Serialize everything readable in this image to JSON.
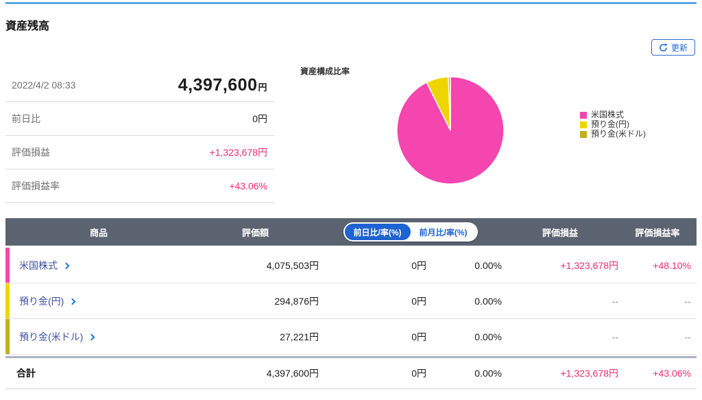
{
  "colors": {
    "top_rule": "#58a6e6",
    "accent_blue": "#2a6bd4",
    "toggle_active_bg": "#1e63cf",
    "link_indigo": "#3f519e",
    "chevron_blue": "#1f78d8",
    "gain_pink": "#ee2e6c",
    "header_bg": "#5b6370",
    "label_gray": "#707070",
    "muted_gray": "#8a8f98",
    "thick_divider": "#a9b3c2"
  },
  "page": {
    "title": "資産残高"
  },
  "toolbar": {
    "refresh_label": "更新"
  },
  "summary": {
    "timestamp": "2022/4/2 08:33",
    "total_value": "4,397,600",
    "total_unit": "円",
    "rows": [
      {
        "label": "前日比",
        "value": "0円"
      },
      {
        "label": "評価損益",
        "value": "+1,323,678円"
      },
      {
        "label": "評価損益率",
        "value": "+43.06%"
      }
    ]
  },
  "chart_data": {
    "type": "pie",
    "title": "資産構成比率",
    "labels": [
      "米国株式",
      "預り金(円)",
      "預り金(米ドル)"
    ],
    "values": [
      92.68,
      6.71,
      0.62
    ],
    "amounts_yen": [
      4075503,
      294876,
      27221
    ],
    "colors": [
      "#f545ae",
      "#eed500",
      "#c4af1c"
    ],
    "legend_position": "right",
    "start_angle": "top-clockwise"
  },
  "table": {
    "col_product": "商品",
    "col_valuation": "評価額",
    "col_pl": "評価損益",
    "col_pl_rate": "評価損益率",
    "toggle": {
      "active_label": "前日比/率(%)",
      "inactive_label": "前月比/率(%)"
    },
    "rows": [
      {
        "product": "米国株式",
        "valuation": "4,075,503円",
        "daily_change": "0円",
        "daily_change_rate": "0.00%",
        "pl": "+1,323,678円",
        "pl_rate": "+48.10%"
      },
      {
        "product": "預り金(円)",
        "valuation": "294,876円",
        "daily_change": "0円",
        "daily_change_rate": "0.00%",
        "pl": "--",
        "pl_rate": "--"
      },
      {
        "product": "預り金(米ドル)",
        "valuation": "27,221円",
        "daily_change": "0円",
        "daily_change_rate": "0.00%",
        "pl": "--",
        "pl_rate": "--"
      }
    ],
    "total": {
      "label": "合計",
      "valuation": "4,397,600円",
      "daily_change": "0円",
      "daily_change_rate": "0.00%",
      "pl": "+1,323,678円",
      "pl_rate": "+43.06%"
    }
  }
}
